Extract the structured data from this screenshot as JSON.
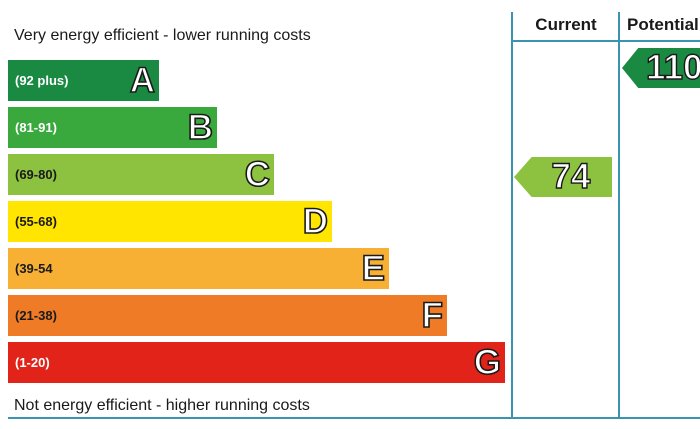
{
  "labels": {
    "top": "Very energy efficient - lower running costs",
    "bottom": "Not energy efficient - higher running costs",
    "current_header": "Current",
    "potential_header": "Potential"
  },
  "chart_data": {
    "type": "bar",
    "title": "",
    "bands": [
      {
        "range": "(92 plus)",
        "letter": "A",
        "color": "#1a8a43"
      },
      {
        "range": "(81-91)",
        "letter": "B",
        "color": "#3aa93d"
      },
      {
        "range": "(69-80)",
        "letter": "C",
        "color": "#8cc240"
      },
      {
        "range": "(55-68)",
        "letter": "D",
        "color": "#ffe500"
      },
      {
        "range": "(39-54",
        "letter": "E",
        "color": "#f8b034"
      },
      {
        "range": "(21-38)",
        "letter": "F",
        "color": "#ef7b26"
      },
      {
        "range": "(1-20)",
        "letter": "G",
        "color": "#e2231a"
      }
    ],
    "current": {
      "value": 74,
      "band": "C",
      "color": "#8cc240"
    },
    "potential": {
      "value": 110,
      "band": "A",
      "color": "#1a8a43"
    }
  }
}
